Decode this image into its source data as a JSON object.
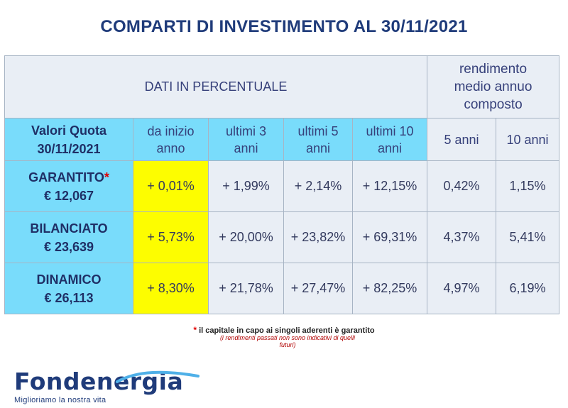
{
  "title": "COMPARTI DI INVESTIMENTO AL 30/11/2021",
  "table": {
    "header_main": "DATI IN PERCENTUALE",
    "header_right": [
      "rendimento",
      "medio annuo",
      "composto"
    ],
    "col_headers": {
      "valori": [
        "Valori Quota",
        "30/11/2021"
      ],
      "inizio": [
        "da inizio",
        "anno"
      ],
      "u3": [
        "ultimi 3",
        "anni"
      ],
      "u5": [
        "ultimi 5",
        "anni"
      ],
      "u10": [
        "ultimi 10",
        "anni"
      ],
      "c5": "5 anni",
      "c10": "10 anni"
    },
    "rows": [
      {
        "name": "GARANTITO",
        "star": "*",
        "quota": "€ 12,067",
        "inizio": "+ 0,01%",
        "u3": "+ 1,99%",
        "u5": "+ 2,14%",
        "u10": "+ 12,15%",
        "c5": "0,42%",
        "c10": "1,15%"
      },
      {
        "name": "BILANCIATO",
        "star": "",
        "quota": "€ 23,639",
        "inizio": "+ 5,73%",
        "u3": "+ 20,00%",
        "u5": "+ 23,82%",
        "u10": "+ 69,31%",
        "c5": "4,37%",
        "c10": "5,41%"
      },
      {
        "name": "DINAMICO",
        "star": "",
        "quota": "€ 26,113",
        "inizio": "+ 8,30%",
        "u3": "+ 21,78%",
        "u5": "+ 27,47%",
        "u10": "+ 82,25%",
        "c5": "4,97%",
        "c10": "6,19%"
      }
    ]
  },
  "notes": {
    "star": "*",
    "line1": "il capitale in capo ai singoli aderenti è garantito",
    "line2a": "(i rendimenti passati non sono indicativi di quelli",
    "line2b": "futuri)"
  },
  "logo": {
    "name": "Fondenergia",
    "tagline": "Miglioriamo la nostra vita",
    "colors": {
      "primary": "#1f3b7a",
      "accent": "#4fb0e8"
    }
  },
  "colors": {
    "cell_light": "#e9eef5",
    "cell_cyan": "#79dcfb",
    "cell_yellow": "#fdfd00",
    "title": "#1f3b7a",
    "asterisk": "#e00000"
  }
}
